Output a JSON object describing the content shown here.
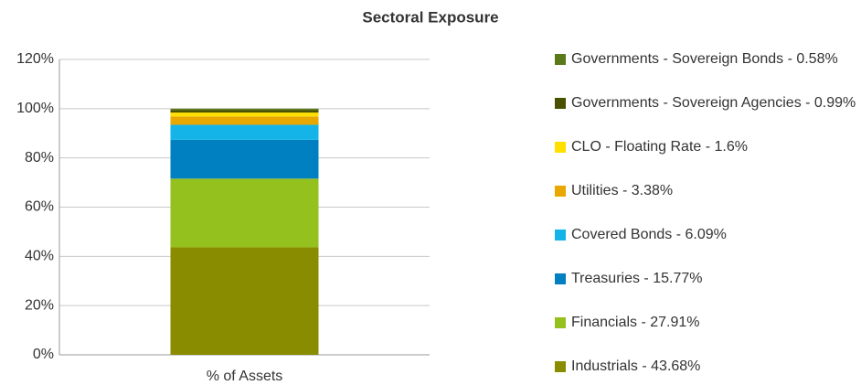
{
  "chart_data": {
    "type": "stacked_bar",
    "title": "Sectoral Exposure",
    "categories": [
      "% of Assets"
    ],
    "series": [
      {
        "name": "Industrials - 43.68%",
        "color": "#8a8c00",
        "values": [
          43.68
        ]
      },
      {
        "name": "Financials - 27.91%",
        "color": "#95c11f",
        "values": [
          27.91
        ]
      },
      {
        "name": "Treasuries - 15.77%",
        "color": "#0080c0",
        "values": [
          15.77
        ]
      },
      {
        "name": "Covered Bonds - 6.09%",
        "color": "#14b4e8",
        "values": [
          6.09
        ]
      },
      {
        "name": "Utilities - 3.38%",
        "color": "#e8a800",
        "values": [
          3.38
        ]
      },
      {
        "name": "CLO - Floating Rate - 1.6%",
        "color": "#ffe000",
        "values": [
          1.6
        ]
      },
      {
        "name": "Governments - Sovereign Agencies - 0.99%",
        "color": "#4a5000",
        "values": [
          0.99
        ]
      },
      {
        "name": "Governments - Sovereign Bonds - 0.58%",
        "color": "#5a7a1a",
        "values": [
          0.58
        ]
      }
    ],
    "ylim": [
      0,
      120
    ],
    "yticks": [
      {
        "value": 0,
        "label": "0%"
      },
      {
        "value": 20,
        "label": "20%"
      },
      {
        "value": 40,
        "label": "40%"
      },
      {
        "value": 60,
        "label": "60%"
      },
      {
        "value": 80,
        "label": "80%"
      },
      {
        "value": 100,
        "label": "100%"
      },
      {
        "value": 120,
        "label": "120%"
      }
    ],
    "grid": true,
    "legend": "right"
  }
}
